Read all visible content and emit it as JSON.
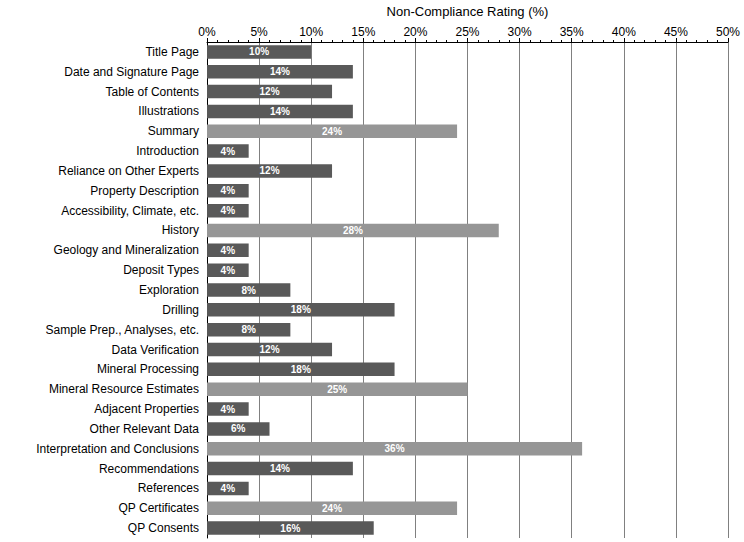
{
  "chart_data": {
    "type": "bar",
    "orientation": "horizontal",
    "xlabel": "Non-Compliance Rating (%)",
    "categories": [
      "Title Page",
      "Date and Signature Page",
      "Table of Contents",
      "Illustrations",
      "Summary",
      "Introduction",
      "Reliance on Other Experts",
      "Property Description",
      "Accessibility, Climate, etc.",
      "History",
      "Geology and Mineralization",
      "Deposit Types",
      "Exploration",
      "Drilling",
      "Sample Prep., Analyses, etc.",
      "Data Verification",
      "Mineral Processing",
      "Mineral Resource Estimates",
      "Adjacent Properties",
      "Other Relevant Data",
      "Interpretation and Conclusions",
      "Recommendations",
      "References",
      "QP Certificates",
      "QP Consents"
    ],
    "values": [
      10,
      14,
      12,
      14,
      24,
      4,
      12,
      4,
      4,
      28,
      4,
      4,
      8,
      18,
      8,
      12,
      18,
      25,
      4,
      6,
      36,
      14,
      4,
      24,
      16
    ],
    "value_labels": [
      "10%",
      "14%",
      "12%",
      "14%",
      "24%",
      "4%",
      "12%",
      "4%",
      "4%",
      "28%",
      "4%",
      "4%",
      "8%",
      "18%",
      "8%",
      "12%",
      "18%",
      "25%",
      "4%",
      "6%",
      "36%",
      "14%",
      "4%",
      "24%",
      "16%"
    ],
    "colors": [
      "#595959",
      "#595959",
      "#595959",
      "#595959",
      "#969696",
      "#595959",
      "#595959",
      "#595959",
      "#595959",
      "#969696",
      "#595959",
      "#595959",
      "#595959",
      "#595959",
      "#595959",
      "#595959",
      "#595959",
      "#969696",
      "#595959",
      "#595959",
      "#969696",
      "#595959",
      "#595959",
      "#969696",
      "#595959"
    ],
    "data_labels": true,
    "grid": true,
    "xlim": [
      0,
      50
    ],
    "xticks": [
      {
        "value": 0,
        "label": "0%"
      },
      {
        "value": 5,
        "label": "5%"
      },
      {
        "value": 10,
        "label": "10%"
      },
      {
        "value": 15,
        "label": "15%"
      },
      {
        "value": 20,
        "label": "20%"
      },
      {
        "value": 25,
        "label": "25%"
      },
      {
        "value": 30,
        "label": "30%"
      },
      {
        "value": 35,
        "label": "35%"
      },
      {
        "value": 40,
        "label": "40%"
      },
      {
        "value": 45,
        "label": "45%"
      },
      {
        "value": 50,
        "label": "50%"
      }
    ]
  }
}
